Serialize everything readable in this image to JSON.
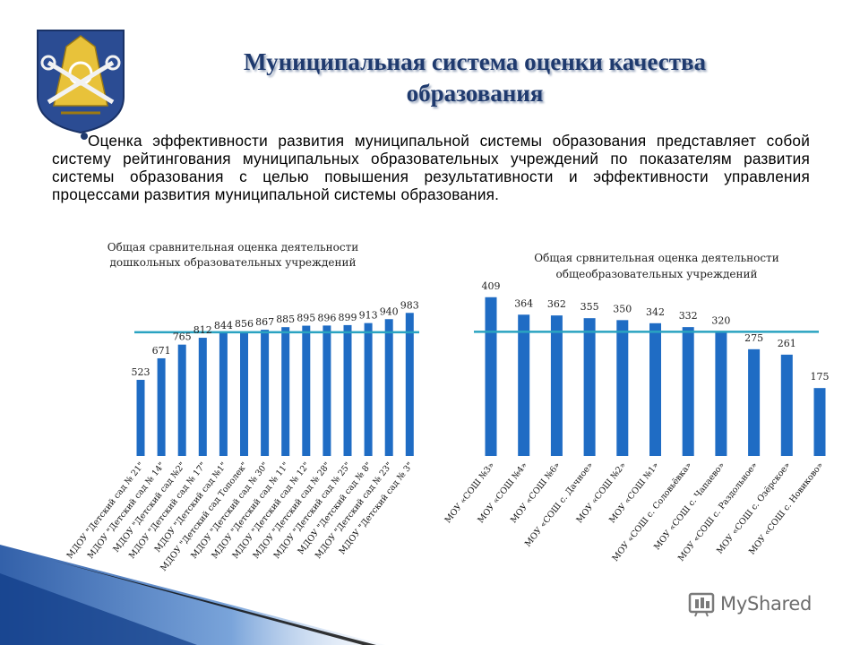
{
  "header": {
    "title_line1": "Муниципальная система оценки качества",
    "title_line2": "образования",
    "intro": "Оценка эффективности развития муниципальной системы образования представляет собой систему рейтингования муниципальных образовательных учреждений по показателям развития системы образования с целью повышения результативности и эффективности управления процессами развития муниципальной системы образования."
  },
  "colors": {
    "bar": "#1f6cc4",
    "average_line": "#2aa3c1",
    "title": "#1f3a6e",
    "crest_shield": "#2b4c93",
    "crest_gold": "#e8c23a"
  },
  "icons": {
    "crest": "municipal-crest-icon",
    "brand": "myshared-logo-icon"
  },
  "watermark": {
    "text": "MyShared"
  },
  "chart_data": [
    {
      "type": "bar",
      "title_line1": "Общая сравнительная оценка деятельности",
      "title_line2": "дошкольных образовательных учреждений",
      "categories": [
        "МДОУ \"Детский сад № 21\"",
        "МДОУ \"Детский сад № 14\"",
        "МДОУ \"Детский сад №2\"",
        "МДОУ \"Детский сад № 17\"",
        "МДОУ \"Детский сад №1\"",
        "МДОУ \"Детский сад Тополек\"",
        "МДОУ \"Детский сад № 30\"",
        "МДОУ \"Детский сад № 11\"",
        "МДОУ \"Детский сад № 12\"",
        "МДОУ \"Детский сад № 28\"",
        "МДОУ \"Детский сад № 25\"",
        "МДОУ \"Детский сад № 8\"",
        "МДОУ \"Детский сад № 23\"",
        "МДОУ \"Детский сад № 3\""
      ],
      "values": [
        523,
        671,
        765,
        812,
        844,
        856,
        867,
        885,
        895,
        896,
        899,
        913,
        940,
        983
      ],
      "average_line": 850,
      "ylim": [
        0,
        1200
      ],
      "grid": false,
      "legend": "none"
    },
    {
      "type": "bar",
      "title_line1": "Общая срвнительная оценка деятельности",
      "title_line2": "общеобразовательных учреждений",
      "categories": [
        "МОУ «СОШ №3»",
        "МОУ «СОШ №4»",
        "МОУ «СОШ №6»",
        "МОУ «СОШ с. Дачное»",
        "МОУ «СОШ №2»",
        "МОУ «СОШ №1»",
        "МОУ «СОШ с. Соловьёвка»",
        "МОУ «СОШ с. Чапаево»",
        "МОУ «СОШ с. Раздольное»",
        "МОУ «СОШ с. Озёрское»",
        "МОУ «СОШ с. Новиково»"
      ],
      "values": [
        409,
        364,
        362,
        355,
        350,
        342,
        332,
        320,
        275,
        261,
        175
      ],
      "average_line": 320,
      "ylim": [
        0,
        450
      ],
      "grid": false,
      "legend": "none"
    }
  ]
}
